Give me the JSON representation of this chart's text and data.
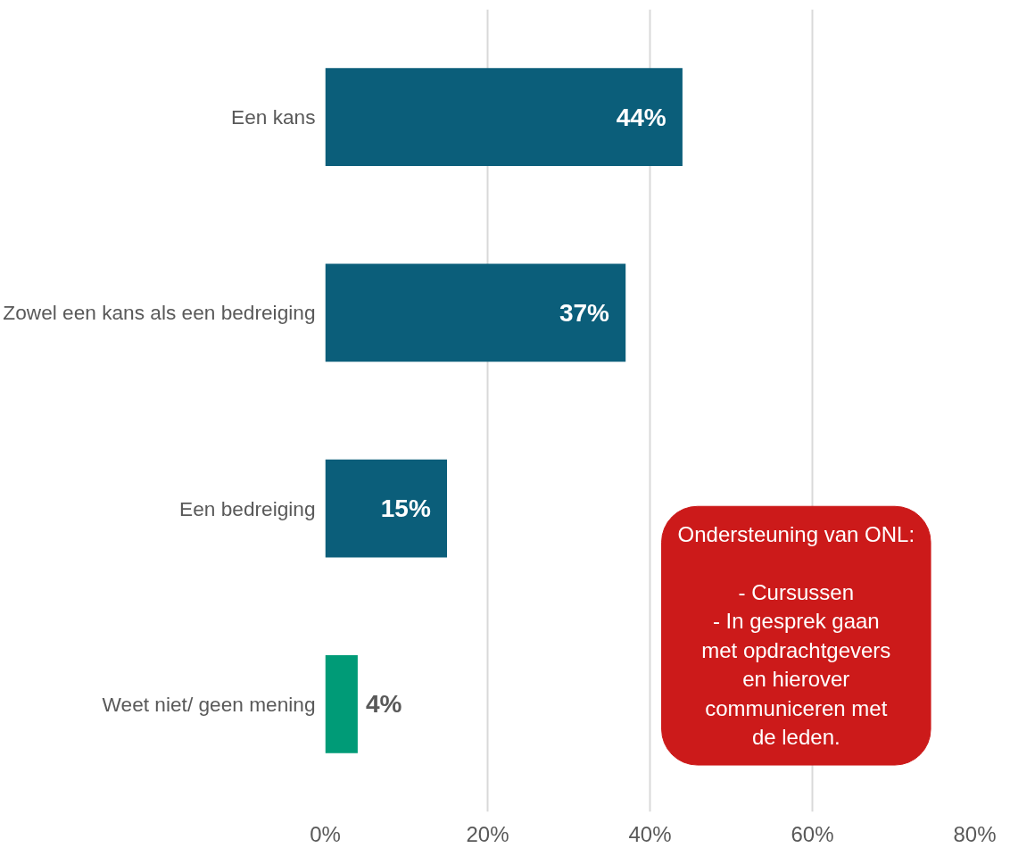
{
  "chart_data": {
    "type": "bar",
    "orientation": "horizontal",
    "categories": [
      "Een kans",
      "Zowel een kans als een bedreiging",
      "Een bedreiging",
      "Weet niet/ geen mening"
    ],
    "values": [
      44,
      37,
      15,
      4
    ],
    "colors": [
      "#0b5e7a",
      "#0b5e7a",
      "#0b5e7a",
      "#009b77"
    ],
    "xlim": [
      0,
      80
    ],
    "xticks": [
      {
        "value": 0,
        "label": "0%"
      },
      {
        "value": 20,
        "label": "20%"
      },
      {
        "value": 40,
        "label": "40%"
      },
      {
        "value": 60,
        "label": "60%"
      },
      {
        "value": 80,
        "label": "80%"
      }
    ],
    "value_labels": [
      "44%",
      "37%",
      "15%",
      "4%"
    ],
    "grid": "x",
    "annotations": [
      "Ondersteuning van ONL:\n\n- Cursussen\n- In gesprek gaan\nmet opdrachtgevers\nen hierover\ncommuniceren met\nde leden."
    ]
  }
}
